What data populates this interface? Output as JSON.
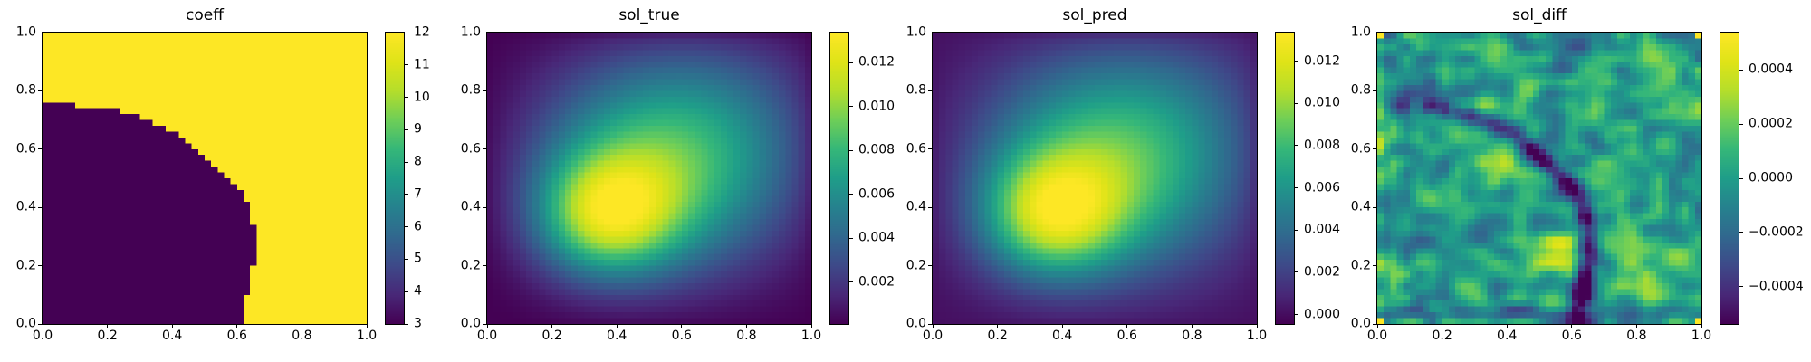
{
  "figure": {
    "background_color": "#ffffff",
    "text_color": "#000000"
  },
  "appearance": {
    "colormap_name": "viridis",
    "viridis_stops": [
      {
        "t": 0.0,
        "hex": "#440154"
      },
      {
        "t": 0.1,
        "hex": "#482878"
      },
      {
        "t": 0.2,
        "hex": "#3e4a89"
      },
      {
        "t": 0.3,
        "hex": "#31688e"
      },
      {
        "t": 0.4,
        "hex": "#26828e"
      },
      {
        "t": 0.5,
        "hex": "#1f9e89"
      },
      {
        "t": 0.6,
        "hex": "#35b779"
      },
      {
        "t": 0.7,
        "hex": "#6ece58"
      },
      {
        "t": 0.8,
        "hex": "#b5de2b"
      },
      {
        "t": 0.9,
        "hex": "#dfe318"
      },
      {
        "t": 1.0,
        "hex": "#fde725"
      }
    ],
    "spine_color": "#000000"
  },
  "chart_data": [
    {
      "type": "heatmap",
      "title": "coeff",
      "grid_n": 50,
      "x_range": [
        0,
        1
      ],
      "y_range": [
        0,
        1
      ],
      "x_ticks": {
        "values": [
          0.0,
          0.2,
          0.4,
          0.6,
          0.8,
          1.0
        ],
        "labels": [
          "0.0",
          "0.2",
          "0.4",
          "0.6",
          "0.8",
          "1.0"
        ]
      },
      "y_ticks": {
        "values": [
          0.0,
          0.2,
          0.4,
          0.6,
          0.8,
          1.0
        ],
        "labels": [
          "0.0",
          "0.2",
          "0.4",
          "0.6",
          "0.8",
          "1.0"
        ]
      },
      "colorbar": {
        "vmin": 3,
        "vmax": 12,
        "tick_values": [
          3,
          4,
          5,
          6,
          7,
          8,
          9,
          10,
          11,
          12
        ],
        "tick_labels": [
          "3",
          "4",
          "5",
          "6",
          "7",
          "8",
          "9",
          "10",
          "11",
          "12"
        ]
      },
      "field": {
        "model": "two_level_region",
        "inside_value": 3,
        "outside_value": 12,
        "boundary_x_of_y": [
          [
            0.0,
            0.615
          ],
          [
            0.04,
            0.618
          ],
          [
            0.08,
            0.625
          ],
          [
            0.12,
            0.635
          ],
          [
            0.16,
            0.645
          ],
          [
            0.2,
            0.648
          ],
          [
            0.215,
            0.66
          ],
          [
            0.245,
            0.66
          ],
          [
            0.26,
            0.655
          ],
          [
            0.32,
            0.655
          ],
          [
            0.36,
            0.648
          ],
          [
            0.4,
            0.638
          ],
          [
            0.43,
            0.625
          ],
          [
            0.46,
            0.605
          ],
          [
            0.5,
            0.568
          ],
          [
            0.54,
            0.535
          ],
          [
            0.58,
            0.497
          ],
          [
            0.62,
            0.455
          ],
          [
            0.65,
            0.425
          ],
          [
            0.68,
            0.368
          ],
          [
            0.7,
            0.33
          ],
          [
            0.72,
            0.283
          ],
          [
            0.735,
            0.215
          ],
          [
            0.745,
            0.15
          ],
          [
            0.752,
            0.08
          ],
          [
            0.756,
            0.0
          ]
        ]
      }
    },
    {
      "type": "heatmap",
      "title": "sol_true",
      "grid_n": 50,
      "x_range": [
        0,
        1
      ],
      "y_range": [
        0,
        1
      ],
      "x_ticks": {
        "values": [
          0.0,
          0.2,
          0.4,
          0.6,
          0.8,
          1.0
        ],
        "labels": [
          "0.0",
          "0.2",
          "0.4",
          "0.6",
          "0.8",
          "1.0"
        ]
      },
      "y_ticks": {
        "values": [
          0.0,
          0.2,
          0.4,
          0.6,
          0.8,
          1.0
        ],
        "labels": [
          "0.0",
          "0.2",
          "0.4",
          "0.6",
          "0.8",
          "1.0"
        ]
      },
      "colorbar": {
        "vmin": 0.0001,
        "vmax": 0.01337,
        "tick_values": [
          0.002,
          0.004,
          0.006,
          0.008,
          0.01,
          0.012
        ],
        "tick_labels": [
          "0.002",
          "0.004",
          "0.006",
          "0.008",
          "0.010",
          "0.012"
        ]
      },
      "field": {
        "model": "gaussian_sum",
        "boundary_decay_exponent": 0.3,
        "peak_location": [
          0.36,
          0.37
        ],
        "gaussians": [
          {
            "amp": 0.009,
            "cx": 0.36,
            "cy": 0.365,
            "sx": 0.155,
            "sy": 0.15
          },
          {
            "amp": 0.0052,
            "cx": 0.52,
            "cy": 0.52,
            "sx": 0.28,
            "sy": 0.26
          },
          {
            "amp": 0.0045,
            "cx": 0.72,
            "cy": 0.68,
            "sx": 0.36,
            "sy": 0.32
          }
        ]
      }
    },
    {
      "type": "heatmap",
      "title": "sol_pred",
      "grid_n": 50,
      "x_range": [
        0,
        1
      ],
      "y_range": [
        0,
        1
      ],
      "x_ticks": {
        "values": [
          0.0,
          0.2,
          0.4,
          0.6,
          0.8,
          1.0
        ],
        "labels": [
          "0.0",
          "0.2",
          "0.4",
          "0.6",
          "0.8",
          "1.0"
        ]
      },
      "y_ticks": {
        "values": [
          0.0,
          0.2,
          0.4,
          0.6,
          0.8,
          1.0
        ],
        "labels": [
          "0.0",
          "0.2",
          "0.4",
          "0.6",
          "0.8",
          "1.0"
        ]
      },
      "colorbar": {
        "vmin": -0.00045,
        "vmax": 0.01335,
        "tick_values": [
          0.0,
          0.002,
          0.004,
          0.006,
          0.008,
          0.01,
          0.012
        ],
        "tick_labels": [
          "0.000",
          "0.002",
          "0.004",
          "0.006",
          "0.008",
          "0.010",
          "0.012"
        ]
      },
      "field": {
        "model": "gaussian_sum",
        "boundary_decay_exponent": 0.3,
        "peak_location": [
          0.36,
          0.37
        ],
        "gaussians": [
          {
            "amp": 0.009,
            "cx": 0.36,
            "cy": 0.365,
            "sx": 0.155,
            "sy": 0.15
          },
          {
            "amp": 0.0052,
            "cx": 0.52,
            "cy": 0.52,
            "sx": 0.28,
            "sy": 0.26
          },
          {
            "amp": 0.0045,
            "cx": 0.72,
            "cy": 0.68,
            "sx": 0.36,
            "sy": 0.32
          }
        ]
      }
    },
    {
      "type": "heatmap",
      "title": "sol_diff",
      "grid_n": 50,
      "x_range": [
        0,
        1
      ],
      "y_range": [
        0,
        1
      ],
      "x_ticks": {
        "values": [
          0.0,
          0.2,
          0.4,
          0.6,
          0.8,
          1.0
        ],
        "labels": [
          "0.0",
          "0.2",
          "0.4",
          "0.6",
          "0.8",
          "1.0"
        ]
      },
      "y_ticks": {
        "values": [
          0.0,
          0.2,
          0.4,
          0.6,
          0.8,
          1.0
        ],
        "labels": [
          "0.0",
          "0.2",
          "0.4",
          "0.6",
          "0.8",
          "1.0"
        ]
      },
      "colorbar": {
        "vmin": -0.000537,
        "vmax": 0.000537,
        "tick_values": [
          0.0004,
          0.0002,
          0.0,
          -0.0002,
          -0.0004
        ],
        "tick_labels": [
          "0.0004",
          "0.0002",
          "0.0000",
          "−0.0002",
          "−0.0004"
        ]
      },
      "field": {
        "model": "noise_ridge",
        "noise_seed": 7,
        "noise_amp": 0.00032,
        "noise_grid": 26,
        "ridge": {
          "amp": -0.00055,
          "width": 0.032,
          "along": "coeff_boundary"
        },
        "blobs": [
          {
            "x": 0.37,
            "y": 0.545,
            "amp": 0.0004,
            "sigma": 0.05
          },
          {
            "x": 0.55,
            "y": 0.24,
            "amp": 0.00048,
            "sigma": 0.048
          },
          {
            "x": 0.35,
            "y": 0.765,
            "amp": 0.00028,
            "sigma": 0.035
          },
          {
            "x": 0.86,
            "y": 0.14,
            "amp": 0.00022,
            "sigma": 0.07
          },
          {
            "x": 0.13,
            "y": 0.82,
            "amp": -0.0002,
            "sigma": 0.07
          },
          {
            "x": 0.67,
            "y": 0.93,
            "amp": -0.00013,
            "sigma": 0.06
          },
          {
            "x": 0.05,
            "y": 0.35,
            "amp": -0.00012,
            "sigma": 0.08
          }
        ],
        "corner_value": 0.00055,
        "bottom_band": {
          "y_center": 0.035,
          "sigma": 0.025,
          "amp": -0.00025
        },
        "left_edge_amp": 0.00012
      }
    }
  ]
}
